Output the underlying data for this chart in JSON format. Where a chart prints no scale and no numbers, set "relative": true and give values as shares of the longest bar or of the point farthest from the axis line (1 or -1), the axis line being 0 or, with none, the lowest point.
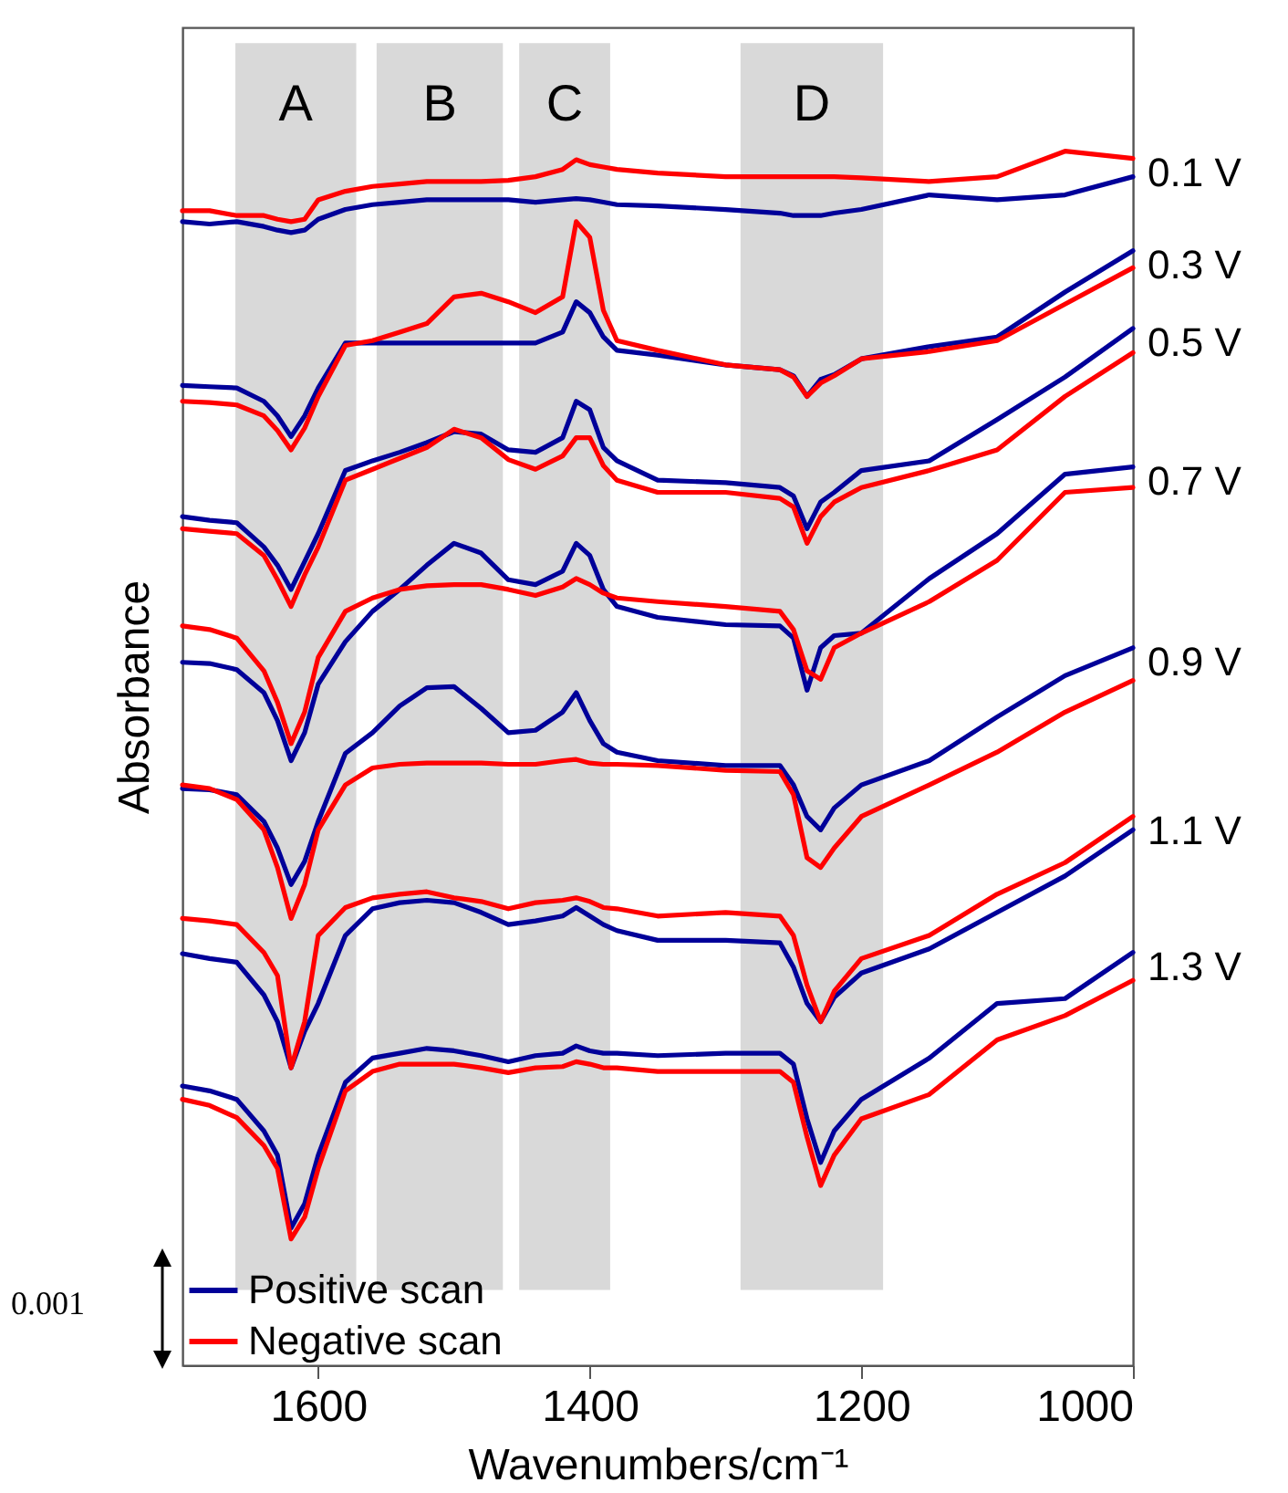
{
  "chart_data": {
    "type": "line",
    "relative": true,
    "xlabel": "Wavenumbers/cm⁻¹",
    "ylabel": "Absorbance",
    "xlim": [
      1700,
      1000
    ],
    "xticks": [
      1600,
      1400,
      1200,
      1000
    ],
    "x": [
      1700,
      1680,
      1660,
      1640,
      1630,
      1620,
      1610,
      1600,
      1580,
      1560,
      1540,
      1520,
      1500,
      1480,
      1460,
      1440,
      1420,
      1410,
      1400,
      1390,
      1380,
      1350,
      1300,
      1260,
      1250,
      1240,
      1230,
      1220,
      1200,
      1150,
      1100,
      1050,
      1000
    ],
    "legend": "bottom left",
    "marker": "none",
    "series": [
      {
        "name": "Positive scan",
        "color": "#000099",
        "values": [
          0.942,
          0.94,
          0.942,
          0.938,
          0.935,
          0.933,
          0.935,
          0.944,
          0.952,
          0.956,
          0.958,
          0.96,
          0.96,
          0.96,
          0.96,
          0.958,
          0.96,
          0.961,
          0.96,
          0.958,
          0.956,
          0.955,
          0.952,
          0.949,
          0.947,
          0.947,
          0.947,
          0.949,
          0.952,
          0.964,
          0.96,
          0.964,
          0.979
        ]
      },
      {
        "name": "Negative scan",
        "color": "#ff0000",
        "values": [
          0.951,
          0.951,
          0.947,
          0.947,
          0.944,
          0.942,
          0.944,
          0.96,
          0.967,
          0.971,
          0.973,
          0.975,
          0.975,
          0.975,
          0.976,
          0.979,
          0.985,
          0.993,
          0.989,
          0.987,
          0.985,
          0.982,
          0.979,
          0.979,
          0.979,
          0.979,
          0.979,
          0.979,
          0.978,
          0.975,
          0.979,
          1,
          0.994
        ]
      },
      {
        "color": "#000099",
        "values": [
          0.807,
          0.806,
          0.805,
          0.794,
          0.782,
          0.765,
          0.782,
          0.805,
          0.842,
          0.842,
          0.842,
          0.842,
          0.842,
          0.842,
          0.842,
          0.842,
          0.851,
          0.876,
          0.867,
          0.847,
          0.836,
          0.832,
          0.824,
          0.82,
          0.815,
          0.798,
          0.812,
          0.816,
          0.829,
          0.839,
          0.847,
          0.884,
          0.918
        ]
      },
      {
        "color": "#ff0000",
        "values": [
          0.794,
          0.793,
          0.791,
          0.782,
          0.77,
          0.754,
          0.772,
          0.798,
          0.84,
          0.844,
          0.851,
          0.858,
          0.88,
          0.883,
          0.876,
          0.867,
          0.88,
          0.942,
          0.929,
          0.869,
          0.844,
          0.836,
          0.824,
          0.82,
          0.814,
          0.798,
          0.809,
          0.815,
          0.829,
          0.835,
          0.844,
          0.874,
          0.904
        ]
      },
      {
        "color": "#000099",
        "values": [
          0.699,
          0.696,
          0.694,
          0.674,
          0.659,
          0.639,
          0.662,
          0.685,
          0.737,
          0.745,
          0.752,
          0.76,
          0.769,
          0.767,
          0.754,
          0.752,
          0.764,
          0.794,
          0.787,
          0.756,
          0.745,
          0.729,
          0.727,
          0.723,
          0.716,
          0.689,
          0.711,
          0.719,
          0.737,
          0.745,
          0.779,
          0.814,
          0.854
        ]
      },
      {
        "color": "#ff0000",
        "values": [
          0.689,
          0.687,
          0.685,
          0.667,
          0.647,
          0.625,
          0.651,
          0.674,
          0.729,
          0.738,
          0.747,
          0.756,
          0.771,
          0.764,
          0.746,
          0.738,
          0.749,
          0.764,
          0.764,
          0.741,
          0.729,
          0.719,
          0.719,
          0.714,
          0.707,
          0.677,
          0.699,
          0.711,
          0.723,
          0.737,
          0.754,
          0.798,
          0.834
        ]
      },
      {
        "color": "#000099",
        "values": [
          0.579,
          0.578,
          0.573,
          0.554,
          0.531,
          0.498,
          0.521,
          0.561,
          0.596,
          0.621,
          0.639,
          0.659,
          0.677,
          0.669,
          0.647,
          0.643,
          0.654,
          0.677,
          0.667,
          0.639,
          0.625,
          0.616,
          0.61,
          0.609,
          0.599,
          0.556,
          0.591,
          0.601,
          0.603,
          0.648,
          0.685,
          0.734,
          0.74
        ]
      },
      {
        "color": "#ff0000",
        "values": [
          0.609,
          0.606,
          0.599,
          0.572,
          0.546,
          0.512,
          0.538,
          0.583,
          0.621,
          0.632,
          0.639,
          0.642,
          0.643,
          0.643,
          0.639,
          0.634,
          0.641,
          0.648,
          0.643,
          0.636,
          0.632,
          0.629,
          0.625,
          0.621,
          0.606,
          0.572,
          0.565,
          0.591,
          0.603,
          0.629,
          0.663,
          0.719,
          0.723
        ]
      },
      {
        "color": "#000099",
        "values": [
          0.475,
          0.474,
          0.47,
          0.448,
          0.426,
          0.396,
          0.415,
          0.448,
          0.504,
          0.521,
          0.543,
          0.558,
          0.559,
          0.541,
          0.521,
          0.523,
          0.538,
          0.554,
          0.531,
          0.512,
          0.505,
          0.498,
          0.494,
          0.494,
          0.478,
          0.452,
          0.441,
          0.459,
          0.478,
          0.498,
          0.534,
          0.568,
          0.591
        ]
      },
      {
        "color": "#ff0000",
        "values": [
          0.478,
          0.475,
          0.466,
          0.441,
          0.41,
          0.368,
          0.396,
          0.441,
          0.478,
          0.492,
          0.495,
          0.496,
          0.496,
          0.496,
          0.495,
          0.495,
          0.498,
          0.499,
          0.496,
          0.495,
          0.495,
          0.494,
          0.49,
          0.489,
          0.47,
          0.418,
          0.41,
          0.426,
          0.452,
          0.478,
          0.505,
          0.538,
          0.564
        ]
      },
      {
        "color": "#000099",
        "values": [
          0.339,
          0.335,
          0.332,
          0.305,
          0.283,
          0.245,
          0.275,
          0.298,
          0.354,
          0.376,
          0.381,
          0.383,
          0.381,
          0.373,
          0.363,
          0.366,
          0.37,
          0.377,
          0.37,
          0.363,
          0.358,
          0.35,
          0.35,
          0.348,
          0.328,
          0.298,
          0.283,
          0.303,
          0.323,
          0.343,
          0.373,
          0.403,
          0.441
        ]
      },
      {
        "color": "#ff0000",
        "values": [
          0.368,
          0.366,
          0.363,
          0.34,
          0.321,
          0.245,
          0.283,
          0.354,
          0.377,
          0.385,
          0.388,
          0.39,
          0.385,
          0.382,
          0.376,
          0.381,
          0.383,
          0.385,
          0.382,
          0.377,
          0.376,
          0.37,
          0.373,
          0.37,
          0.354,
          0.313,
          0.283,
          0.308,
          0.335,
          0.354,
          0.388,
          0.414,
          0.452
        ]
      },
      {
        "color": "#000099",
        "values": [
          0.23,
          0.226,
          0.219,
          0.193,
          0.173,
          0.113,
          0.133,
          0.173,
          0.233,
          0.253,
          0.257,
          0.261,
          0.259,
          0.255,
          0.25,
          0.255,
          0.257,
          0.263,
          0.259,
          0.257,
          0.257,
          0.255,
          0.257,
          0.257,
          0.248,
          0.203,
          0.167,
          0.193,
          0.219,
          0.253,
          0.298,
          0.302,
          0.34
        ]
      },
      {
        "color": "#ff0000",
        "values": [
          0.219,
          0.214,
          0.204,
          0.181,
          0.162,
          0.104,
          0.122,
          0.162,
          0.226,
          0.242,
          0.248,
          0.248,
          0.248,
          0.245,
          0.241,
          0.245,
          0.246,
          0.25,
          0.248,
          0.245,
          0.245,
          0.242,
          0.242,
          0.242,
          0.233,
          0.188,
          0.148,
          0.173,
          0.203,
          0.223,
          0.268,
          0.288,
          0.317
        ]
      }
    ],
    "bands": [
      {
        "axis": "x",
        "from": 1661,
        "to": 1572,
        "label": "A",
        "color": "#d9d9d9"
      },
      {
        "axis": "x",
        "from": 1557,
        "to": 1464,
        "label": "B",
        "color": "#d9d9d9"
      },
      {
        "axis": "x",
        "from": 1452,
        "to": 1385,
        "label": "C",
        "color": "#d9d9d9"
      },
      {
        "axis": "x",
        "from": 1289,
        "to": 1184,
        "label": "D",
        "color": "#d9d9d9"
      }
    ],
    "annotations": [
      "0.1 V",
      "0.3 V",
      "0.5 V",
      "0.7 V",
      "0.9 V",
      "1.1 V",
      "1.3 V",
      "0.001"
    ]
  }
}
